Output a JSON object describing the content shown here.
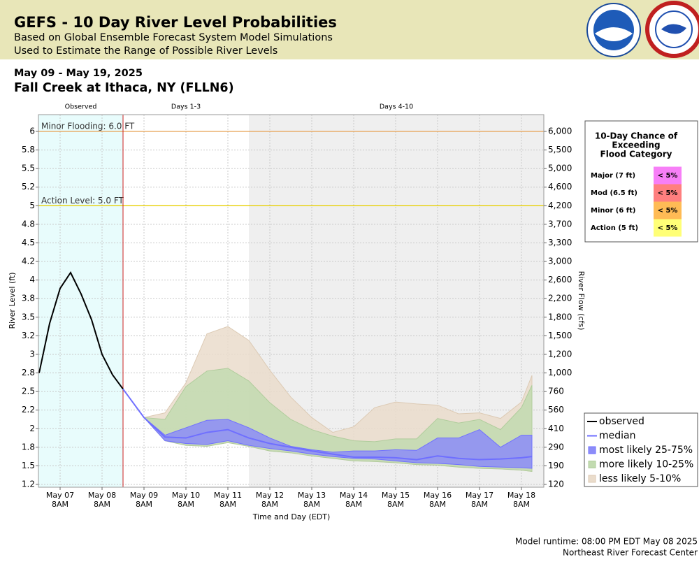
{
  "header": {
    "title": "GEFS - 10 Day River Level Probabilities",
    "subtitle": [
      "Based on Global Ensemble Forecast System Model Simulations",
      "Used to Estimate the Range of Possible River Levels"
    ]
  },
  "chart_data": {
    "type": "line",
    "date_range": "May 09 - May 19, 2025",
    "title": "Fall Creek at Ithaca, NY (FLLN6)",
    "x_label": "Time and Day (EDT)",
    "y_label": "River Level (ft)",
    "y2_label": "River Flow (cfs)",
    "xlim": [
      "2025-05-06T19:36",
      "2025-05-18T20:48"
    ],
    "xticks": [
      {
        "value": "2025-05-07T08:00",
        "label": [
          "May 07",
          "8AM"
        ]
      },
      {
        "value": "2025-05-08T08:00",
        "label": [
          "May 08",
          "8AM"
        ]
      },
      {
        "value": "2025-05-09T08:00",
        "label": [
          "May 09",
          "8AM"
        ]
      },
      {
        "value": "2025-05-10T08:00",
        "label": [
          "May 10",
          "8AM"
        ]
      },
      {
        "value": "2025-05-11T08:00",
        "label": [
          "May 11",
          "8AM"
        ]
      },
      {
        "value": "2025-05-12T08:00",
        "label": [
          "May 12",
          "8AM"
        ]
      },
      {
        "value": "2025-05-13T08:00",
        "label": [
          "May 13",
          "8AM"
        ]
      },
      {
        "value": "2025-05-14T08:00",
        "label": [
          "May 14",
          "8AM"
        ]
      },
      {
        "value": "2025-05-15T08:00",
        "label": [
          "May 15",
          "8AM"
        ]
      },
      {
        "value": "2025-05-16T08:00",
        "label": [
          "May 16",
          "8AM"
        ]
      },
      {
        "value": "2025-05-17T08:00",
        "label": [
          "May 17",
          "8AM"
        ]
      },
      {
        "value": "2025-05-18T08:00",
        "label": [
          "May 18",
          "8AM"
        ]
      }
    ],
    "yticks": [
      1.2,
      1.5,
      1.8,
      2.0,
      2.2,
      2.5,
      2.8,
      3.0,
      3.2,
      3.5,
      3.8,
      4.0,
      4.2,
      4.5,
      4.8,
      5.0,
      5.2,
      5.5,
      5.8,
      6.0
    ],
    "y2ticks": [
      120,
      190,
      290,
      410,
      560,
      760,
      {
        "value": 1000,
        "label": "1,000"
      },
      {
        "value": 1200,
        "label": "1,200"
      },
      {
        "value": 1500,
        "label": "1,500"
      },
      {
        "value": 1800,
        "label": "1,800"
      },
      {
        "value": 2200,
        "label": "2,200"
      },
      {
        "value": 2600,
        "label": "2,600"
      },
      {
        "value": 3000,
        "label": "3,000"
      },
      {
        "value": 3300,
        "label": "3,300"
      },
      {
        "value": 3700,
        "label": "3,700"
      },
      {
        "value": 4200,
        "label": "4,200"
      },
      {
        "value": 4600,
        "label": "4,600"
      },
      {
        "value": 5000,
        "label": "5,000"
      },
      {
        "value": 5500,
        "label": "5,500"
      },
      {
        "value": 6000,
        "label": "6,000"
      }
    ],
    "grid": true,
    "periods": [
      {
        "label": "Observed",
        "start": "2025-05-06T19:36",
        "end": "2025-05-08T20:00",
        "color": "#e8fcfc"
      },
      {
        "label": "Days 1-3",
        "start": "2025-05-08T20:00",
        "end": "2025-05-11T20:00",
        "color": "#ffffff"
      },
      {
        "label": "Days 4-10",
        "start": "2025-05-11T20:00",
        "end": "2025-05-18T20:48",
        "color": "#efefef"
      }
    ],
    "thresholds": [
      {
        "label": "Minor Flooding: 6.0 FT",
        "value": 6.0,
        "color": "#e8a050"
      },
      {
        "label": "Action Level: 5.0 FT",
        "value": 5.0,
        "color": "#e8d000"
      }
    ],
    "observed": {
      "name": "observed",
      "color": "#000000",
      "x": [
        "2025-05-06T20:00",
        "2025-05-07T02:00",
        "2025-05-07T08:00",
        "2025-05-07T14:00",
        "2025-05-07T20:00",
        "2025-05-08T02:00",
        "2025-05-08T08:00",
        "2025-05-08T14:00",
        "2025-05-08T20:00"
      ],
      "values": [
        2.8,
        3.4,
        3.91,
        4.08,
        3.85,
        3.46,
        3.0,
        2.77,
        2.54
      ]
    },
    "forecast_x": [
      "2025-05-08T20:00",
      "2025-05-09T08:00",
      "2025-05-09T20:00",
      "2025-05-10T08:00",
      "2025-05-10T20:00",
      "2025-05-11T08:00",
      "2025-05-11T20:00",
      "2025-05-12T08:00",
      "2025-05-12T20:00",
      "2025-05-13T08:00",
      "2025-05-13T20:00",
      "2025-05-14T08:00",
      "2025-05-14T20:00",
      "2025-05-15T08:00",
      "2025-05-15T20:00",
      "2025-05-16T08:00",
      "2025-05-16T20:00",
      "2025-05-17T08:00",
      "2025-05-17T20:00",
      "2025-05-18T08:00",
      "2025-05-18T14:00"
    ],
    "median": {
      "name": "median",
      "color": "#6f6fff",
      "values": [
        2.54,
        2.12,
        1.91,
        1.9,
        1.96,
        1.99,
        1.9,
        1.84,
        1.8,
        1.74,
        1.69,
        1.64,
        1.64,
        1.63,
        1.6,
        1.66,
        1.62,
        1.6,
        1.61,
        1.63,
        1.65
      ]
    },
    "bands": [
      {
        "name": "most likely 25-75%",
        "color": "#8c8cf8",
        "edge": "#7070ff",
        "lower": [
          2.54,
          2.12,
          1.87,
          1.84,
          1.83,
          1.87,
          1.82,
          1.78,
          1.74,
          1.69,
          1.65,
          1.62,
          1.61,
          1.58,
          1.55,
          1.54,
          1.52,
          1.49,
          1.48,
          1.47,
          1.46
        ],
        "upper": [
          2.54,
          2.12,
          1.93,
          2.01,
          2.09,
          2.1,
          2.01,
          1.9,
          1.81,
          1.76,
          1.72,
          1.74,
          1.74,
          1.76,
          1.75,
          1.9,
          1.9,
          1.99,
          1.8,
          1.93,
          1.93
        ]
      },
      {
        "name": "more likely 10-25%",
        "color": "#c2dbb0",
        "edge": "#b0cc9c",
        "lower": [
          2.54,
          2.12,
          1.87,
          1.82,
          1.81,
          1.85,
          1.81,
          1.74,
          1.71,
          1.66,
          1.62,
          1.58,
          1.57,
          1.55,
          1.52,
          1.51,
          1.48,
          1.46,
          1.45,
          1.43,
          1.41
        ],
        "upper": [
          2.54,
          2.12,
          2.1,
          2.58,
          2.82,
          2.85,
          2.67,
          2.32,
          2.1,
          1.99,
          1.92,
          1.87,
          1.86,
          1.89,
          1.89,
          2.11,
          2.06,
          2.1,
          1.99,
          2.24,
          2.6
        ]
      },
      {
        "name": "less likely 5-10%",
        "color": "#eadccb",
        "edge": "#dccab4",
        "lower": [
          2.54,
          2.12,
          1.87,
          1.82,
          1.81,
          1.85,
          1.81,
          1.74,
          1.71,
          1.66,
          1.62,
          1.58,
          1.57,
          1.55,
          1.52,
          1.51,
          1.48,
          1.46,
          1.45,
          1.43,
          1.41
        ],
        "upper": [
          2.54,
          2.12,
          2.17,
          2.64,
          3.23,
          3.35,
          3.15,
          2.83,
          2.41,
          2.12,
          1.96,
          2.02,
          2.24,
          2.33,
          2.3,
          2.28,
          2.16,
          2.17,
          2.11,
          2.33,
          2.76
        ]
      }
    ]
  },
  "flood_table": {
    "title": [
      "10-Day Chance of",
      "Exceeding",
      "Flood Category"
    ],
    "rows": [
      {
        "category": "Major (7 ft)",
        "chance": "< 5%",
        "color": "#f77ff7"
      },
      {
        "category": "Mod (6.5 ft)",
        "chance": "< 5%",
        "color": "#ff7f7f"
      },
      {
        "category": "Minor (6 ft)",
        "chance": "< 5%",
        "color": "#ffbb55"
      },
      {
        "category": "Action (5 ft)",
        "chance": "< 5%",
        "color": "#ffff77"
      }
    ]
  },
  "footer": [
    "Model runtime: 08:00 PM EDT May 08 2025",
    "Northeast River Forecast Center"
  ]
}
